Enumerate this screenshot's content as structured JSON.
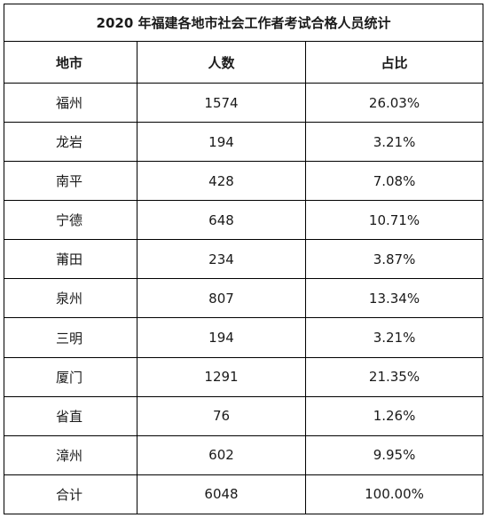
{
  "table": {
    "title": "2020 年福建各地市社会工作者考试合格人员统计",
    "headers": {
      "region": "地市",
      "count": "人数",
      "share": "占比"
    },
    "rows": [
      {
        "region": "福州",
        "count": "1574",
        "share": "26.03%"
      },
      {
        "region": "龙岩",
        "count": "194",
        "share": "3.21%"
      },
      {
        "region": "南平",
        "count": "428",
        "share": "7.08%"
      },
      {
        "region": "宁德",
        "count": "648",
        "share": "10.71%"
      },
      {
        "region": "莆田",
        "count": "234",
        "share": "3.87%"
      },
      {
        "region": "泉州",
        "count": "807",
        "share": "13.34%"
      },
      {
        "region": "三明",
        "count": "194",
        "share": "3.21%"
      },
      {
        "region": "厦门",
        "count": "1291",
        "share": "21.35%"
      },
      {
        "region": "省直",
        "count": "76",
        "share": "1.26%"
      },
      {
        "region": "漳州",
        "count": "602",
        "share": "9.95%"
      },
      {
        "region": "合计",
        "count": "6048",
        "share": "100.00%"
      }
    ]
  }
}
